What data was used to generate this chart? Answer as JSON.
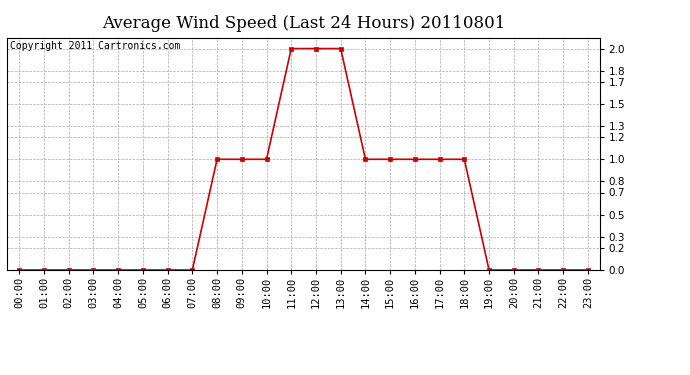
{
  "title": "Average Wind Speed (Last 24 Hours) 20110801",
  "copyright_text": "Copyright 2011 Cartronics.com",
  "hours": [
    0,
    1,
    2,
    3,
    4,
    5,
    6,
    7,
    8,
    9,
    10,
    11,
    12,
    13,
    14,
    15,
    16,
    17,
    18,
    19,
    20,
    21,
    22,
    23
  ],
  "values": [
    0.0,
    0.0,
    0.0,
    0.0,
    0.0,
    0.0,
    0.0,
    0.0,
    1.0,
    1.0,
    1.0,
    2.0,
    2.0,
    2.0,
    1.0,
    1.0,
    1.0,
    1.0,
    1.0,
    0.0,
    0.0,
    0.0,
    0.0,
    0.0
  ],
  "line_color": "#cc0000",
  "marker_color": "#cc0000",
  "bg_color": "#ffffff",
  "grid_color": "#aaaaaa",
  "ylim": [
    0.0,
    2.1
  ],
  "yticks": [
    0.0,
    0.2,
    0.3,
    0.5,
    0.7,
    0.8,
    1.0,
    1.2,
    1.3,
    1.5,
    1.7,
    1.8,
    2.0
  ],
  "title_fontsize": 12,
  "copyright_fontsize": 7,
  "tick_label_fontsize": 7.5
}
